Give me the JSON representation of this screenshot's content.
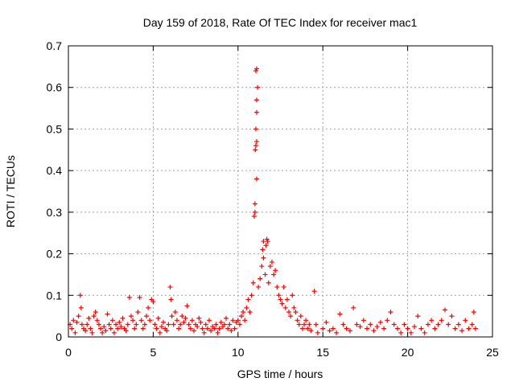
{
  "chart_data": {
    "type": "scatter",
    "title": "Day 159 of 2018, Rate Of TEC Index for receiver mac1",
    "xlabel": "GPS time / hours",
    "ylabel": "ROTI / TECUs",
    "xlim": [
      0,
      25
    ],
    "ylim": [
      0,
      0.7
    ],
    "xticks": [
      0,
      5,
      10,
      15,
      20,
      25
    ],
    "yticks": [
      0,
      0.1,
      0.2,
      0.3,
      0.4,
      0.5,
      0.6,
      0.7
    ],
    "grid": true,
    "marker": "+",
    "series": [
      {
        "name": "ROTI mac1",
        "color": "#ff0000",
        "points": [
          [
            0.1,
            0.03
          ],
          [
            0.2,
            0.02
          ],
          [
            0.3,
            0.04
          ],
          [
            0.4,
            0.01
          ],
          [
            0.5,
            0.035
          ],
          [
            0.6,
            0.05
          ],
          [
            0.7,
            0.1
          ],
          [
            0.75,
            0.07
          ],
          [
            0.8,
            0.03
          ],
          [
            0.9,
            0.02
          ],
          [
            1.0,
            0.015
          ],
          [
            1.1,
            0.03
          ],
          [
            1.2,
            0.045
          ],
          [
            1.3,
            0.02
          ],
          [
            1.4,
            0.01
          ],
          [
            1.5,
            0.05
          ],
          [
            1.6,
            0.06
          ],
          [
            1.7,
            0.04
          ],
          [
            1.8,
            0.03
          ],
          [
            1.9,
            0.02
          ],
          [
            2.0,
            0.01
          ],
          [
            2.1,
            0.025
          ],
          [
            2.2,
            0.015
          ],
          [
            2.3,
            0.055
          ],
          [
            2.4,
            0.03
          ],
          [
            2.5,
            0.02
          ],
          [
            2.6,
            0.04
          ],
          [
            2.7,
            0.01
          ],
          [
            2.8,
            0.03
          ],
          [
            2.9,
            0.02
          ],
          [
            3.0,
            0.035
          ],
          [
            3.1,
            0.025
          ],
          [
            3.2,
            0.045
          ],
          [
            3.3,
            0.02
          ],
          [
            3.4,
            0.015
          ],
          [
            3.5,
            0.03
          ],
          [
            3.6,
            0.095
          ],
          [
            3.7,
            0.05
          ],
          [
            3.8,
            0.04
          ],
          [
            3.9,
            0.02
          ],
          [
            4.0,
            0.03
          ],
          [
            4.1,
            0.06
          ],
          [
            4.2,
            0.095
          ],
          [
            4.3,
            0.04
          ],
          [
            4.4,
            0.02
          ],
          [
            4.5,
            0.03
          ],
          [
            4.6,
            0.05
          ],
          [
            4.7,
            0.07
          ],
          [
            4.8,
            0.04
          ],
          [
            4.9,
            0.09
          ],
          [
            5.0,
            0.085
          ],
          [
            5.1,
            0.03
          ],
          [
            5.2,
            0.02
          ],
          [
            5.3,
            0.045
          ],
          [
            5.4,
            0.01
          ],
          [
            5.5,
            0.025
          ],
          [
            5.6,
            0.035
          ],
          [
            5.7,
            0.02
          ],
          [
            5.8,
            0.015
          ],
          [
            5.9,
            0.03
          ],
          [
            6.0,
            0.12
          ],
          [
            6.05,
            0.09
          ],
          [
            6.1,
            0.05
          ],
          [
            6.2,
            0.03
          ],
          [
            6.3,
            0.06
          ],
          [
            6.4,
            0.04
          ],
          [
            6.5,
            0.02
          ],
          [
            6.6,
            0.03
          ],
          [
            6.7,
            0.05
          ],
          [
            6.8,
            0.035
          ],
          [
            6.9,
            0.045
          ],
          [
            7.0,
            0.075
          ],
          [
            7.1,
            0.03
          ],
          [
            7.2,
            0.02
          ],
          [
            7.3,
            0.04
          ],
          [
            7.4,
            0.015
          ],
          [
            7.5,
            0.03
          ],
          [
            7.6,
            0.025
          ],
          [
            7.7,
            0.045
          ],
          [
            7.8,
            0.035
          ],
          [
            7.9,
            0.02
          ],
          [
            8.0,
            0.01
          ],
          [
            8.1,
            0.03
          ],
          [
            8.2,
            0.02
          ],
          [
            8.3,
            0.04
          ],
          [
            8.4,
            0.015
          ],
          [
            8.5,
            0.025
          ],
          [
            8.6,
            0.02
          ],
          [
            8.7,
            0.03
          ],
          [
            8.8,
            0.01
          ],
          [
            8.9,
            0.02
          ],
          [
            9.0,
            0.035
          ],
          [
            9.1,
            0.025
          ],
          [
            9.2,
            0.03
          ],
          [
            9.3,
            0.045
          ],
          [
            9.4,
            0.02
          ],
          [
            9.5,
            0.03
          ],
          [
            9.6,
            0.015
          ],
          [
            9.7,
            0.04
          ],
          [
            9.8,
            0.02
          ],
          [
            9.9,
            0.035
          ],
          [
            10.0,
            0.04
          ],
          [
            10.1,
            0.03
          ],
          [
            10.2,
            0.05
          ],
          [
            10.3,
            0.06
          ],
          [
            10.4,
            0.04
          ],
          [
            10.5,
            0.07
          ],
          [
            10.6,
            0.09
          ],
          [
            10.7,
            0.06
          ],
          [
            10.8,
            0.1
          ],
          [
            10.9,
            0.13
          ],
          [
            10.95,
            0.29
          ],
          [
            11.0,
            0.3
          ],
          [
            11.0,
            0.32
          ],
          [
            11.02,
            0.45
          ],
          [
            11.05,
            0.46
          ],
          [
            11.1,
            0.47
          ],
          [
            11.05,
            0.5
          ],
          [
            11.1,
            0.54
          ],
          [
            11.1,
            0.57
          ],
          [
            11.15,
            0.6
          ],
          [
            11.05,
            0.64
          ],
          [
            11.1,
            0.645
          ],
          [
            11.1,
            0.38
          ],
          [
            11.2,
            0.12
          ],
          [
            11.3,
            0.14
          ],
          [
            11.4,
            0.17
          ],
          [
            11.45,
            0.21
          ],
          [
            11.5,
            0.23
          ],
          [
            11.5,
            0.19
          ],
          [
            11.6,
            0.15
          ],
          [
            11.65,
            0.22
          ],
          [
            11.7,
            0.235
          ],
          [
            11.75,
            0.23
          ],
          [
            11.8,
            0.13
          ],
          [
            11.9,
            0.17
          ],
          [
            12.0,
            0.18
          ],
          [
            12.1,
            0.15
          ],
          [
            12.2,
            0.16
          ],
          [
            12.3,
            0.12
          ],
          [
            12.4,
            0.1
          ],
          [
            12.5,
            0.09
          ],
          [
            12.6,
            0.08
          ],
          [
            12.7,
            0.12
          ],
          [
            12.8,
            0.07
          ],
          [
            12.9,
            0.09
          ],
          [
            13.0,
            0.06
          ],
          [
            13.1,
            0.05
          ],
          [
            13.2,
            0.1
          ],
          [
            13.3,
            0.07
          ],
          [
            13.4,
            0.06
          ],
          [
            13.5,
            0.04
          ],
          [
            13.6,
            0.03
          ],
          [
            13.7,
            0.05
          ],
          [
            13.8,
            0.02
          ],
          [
            13.9,
            0.03
          ],
          [
            14.0,
            0.04
          ],
          [
            14.1,
            0.02
          ],
          [
            14.2,
            0.03
          ],
          [
            14.3,
            0.015
          ],
          [
            14.5,
            0.11
          ],
          [
            14.6,
            0.03
          ],
          [
            14.7,
            0.01
          ],
          [
            15.0,
            0.02
          ],
          [
            15.2,
            0.035
          ],
          [
            15.4,
            0.015
          ],
          [
            15.6,
            0.02
          ],
          [
            15.8,
            0.01
          ],
          [
            16.0,
            0.055
          ],
          [
            16.2,
            0.03
          ],
          [
            16.4,
            0.02
          ],
          [
            16.6,
            0.015
          ],
          [
            16.8,
            0.07
          ],
          [
            17.0,
            0.03
          ],
          [
            17.2,
            0.025
          ],
          [
            17.4,
            0.04
          ],
          [
            17.6,
            0.02
          ],
          [
            17.8,
            0.03
          ],
          [
            18.0,
            0.015
          ],
          [
            18.2,
            0.025
          ],
          [
            18.4,
            0.035
          ],
          [
            18.6,
            0.02
          ],
          [
            18.8,
            0.04
          ],
          [
            19.0,
            0.06
          ],
          [
            19.2,
            0.03
          ],
          [
            19.4,
            0.02
          ],
          [
            19.6,
            0.01
          ],
          [
            19.8,
            0.03
          ],
          [
            20.0,
            0.02
          ],
          [
            20.2,
            0.01
          ],
          [
            20.4,
            0.025
          ],
          [
            20.6,
            0.05
          ],
          [
            20.8,
            0.02
          ],
          [
            21.0,
            0.01
          ],
          [
            21.2,
            0.03
          ],
          [
            21.4,
            0.04
          ],
          [
            21.6,
            0.02
          ],
          [
            21.8,
            0.03
          ],
          [
            22.0,
            0.04
          ],
          [
            22.2,
            0.065
          ],
          [
            22.4,
            0.03
          ],
          [
            22.6,
            0.05
          ],
          [
            22.8,
            0.02
          ],
          [
            23.0,
            0.03
          ],
          [
            23.2,
            0.015
          ],
          [
            23.4,
            0.04
          ],
          [
            23.6,
            0.02
          ],
          [
            23.8,
            0.03
          ],
          [
            23.9,
            0.06
          ],
          [
            24.0,
            0.02
          ]
        ]
      }
    ]
  }
}
